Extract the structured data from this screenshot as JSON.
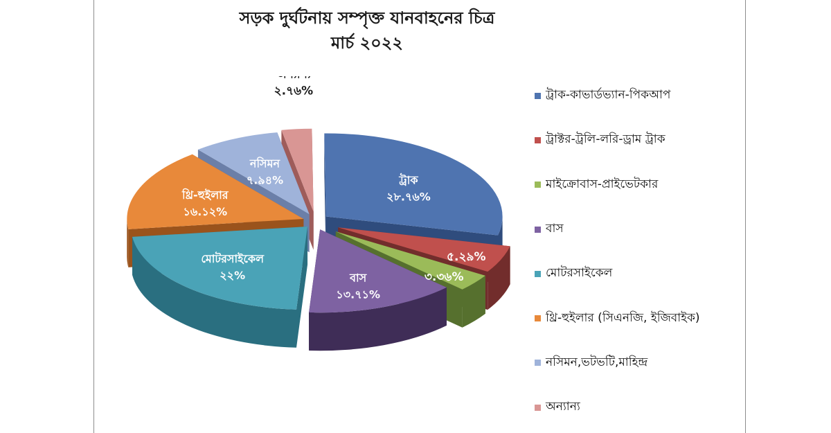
{
  "title": "সড়ক দুর্ঘটনায় সম্পৃক্ত যানবাহনের চিত্র",
  "subtitle": "মার্চ ২০২২",
  "colors": {
    "slices": [
      "#4f74b0",
      "#c0504d",
      "#9bbb59",
      "#7e62a2",
      "#4aa3b7",
      "#e8893a",
      "#9fb3da",
      "#d99694"
    ],
    "sides": [
      "#2f4c7d",
      "#722d2c",
      "#56702e",
      "#3f2d57",
      "#2a6f80",
      "#9a531c",
      "#6b7fa8",
      "#9e5c5a"
    ]
  },
  "chart_data": {
    "type": "pie",
    "three_d": true,
    "title": "সড়ক দুর্ঘটনায় সম্পৃক্ত যানবাহনের চিত্র",
    "subtitle": "মার্চ ২০২২",
    "legend_position": "right",
    "slices": [
      {
        "legend": "ট্রাক-কাভার্ডভ্যান-পিকআপ",
        "label": "ট্রাক",
        "value_label": "২৮.৭৬%",
        "value": 28.76
      },
      {
        "legend": "ট্রাক্টর-ট্রলি-লরি-ড্রাম ট্রাক",
        "label": "",
        "value_label": "৫.২৯%",
        "value": 5.29
      },
      {
        "legend": "মাইক্রোবাস-প্রাইভেটকার",
        "label": "",
        "value_label": "৩.৩৬%",
        "value": 3.36
      },
      {
        "legend": "বাস",
        "label": "বাস",
        "value_label": "১৩.৭১%",
        "value": 13.71
      },
      {
        "legend": "মোটরসাইকেল",
        "label": "মোটরসাইকেল",
        "value_label": "২২%",
        "value": 22
      },
      {
        "legend": "থ্রি-হুইলার (সিএনজি, ইজিবাইক)",
        "label": "থ্রি-হুইলার",
        "value_label": "১৬.১২%",
        "value": 16.12
      },
      {
        "legend": "নসিমন,ভটভটি,মাহিন্দ্র",
        "label": "নসিমন",
        "value_label": "৭.৯৪%",
        "value": 7.94
      },
      {
        "legend": "অন্যান্য",
        "label": "অন্যান্য",
        "value_label": "২.৭৬%",
        "value": 2.76
      }
    ]
  }
}
